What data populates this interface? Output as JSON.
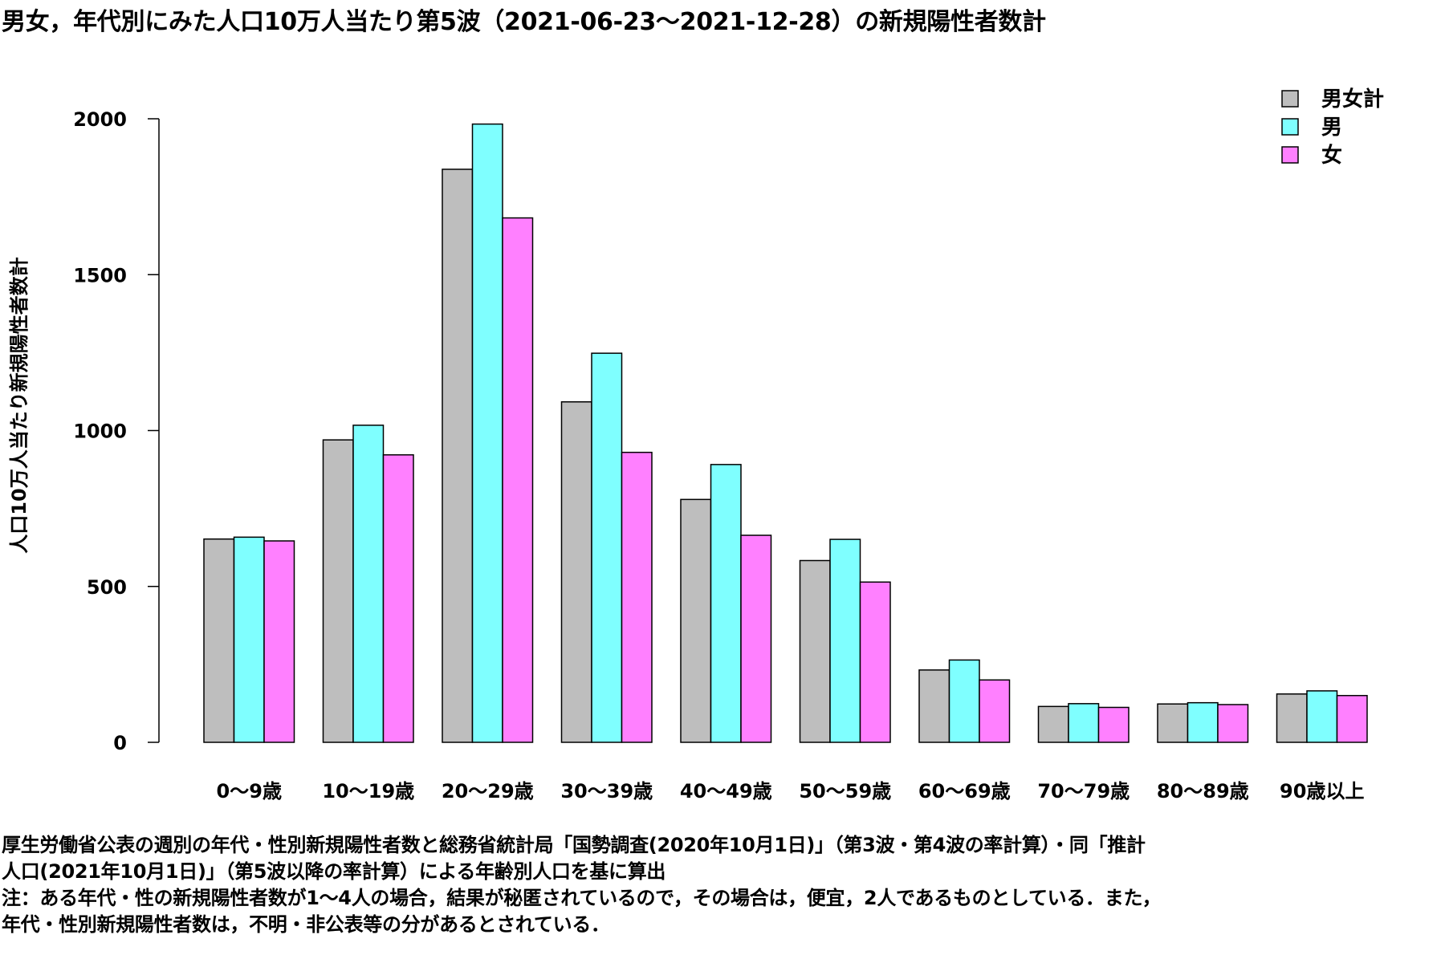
{
  "chart_data": {
    "type": "bar",
    "title": "男女，年代別にみた人口10万人当たり第5波（2021-06-23～2021-12-28）の新規陽性者数計",
    "xlabel": "",
    "ylabel": "人口10万人当たり新規陽性者数計",
    "ylim": [
      0,
      2000
    ],
    "yticks": [
      "0",
      "500",
      "1000",
      "1500",
      "2000"
    ],
    "grid": false,
    "legend_position": "top-right",
    "categories": [
      "0～9歳",
      "10～19歳",
      "20～29歳",
      "30～39歳",
      "40～49歳",
      "50～59歳",
      "60～69歳",
      "70～79歳",
      "80～89歳",
      "90歳以上"
    ],
    "series": [
      {
        "name": "男女計",
        "color": "#BEBEBE",
        "values": [
          652,
          970,
          1838,
          1092,
          779,
          583,
          232,
          115,
          123,
          155
        ]
      },
      {
        "name": "男",
        "color": "#7FFFFF",
        "values": [
          658,
          1017,
          1983,
          1248,
          891,
          651,
          264,
          124,
          127,
          165
        ]
      },
      {
        "name": "女",
        "color": "#FF80FF",
        "values": [
          646,
          922,
          1682,
          930,
          664,
          514,
          200,
          112,
          121,
          150
        ]
      }
    ]
  },
  "notes": {
    "line1": "厚生労働省公表の週別の年代・性別新規陽性者数と総務省統計局「国勢調査(2020年10月1日)」（第3波・第4波の率計算）・同「推計",
    "line2": "人口(2021年10月1日)」（第5波以降の率計算）による年齢別人口を基に算出",
    "line3": "注：ある年代・性の新規陽性者数が1～4人の場合，結果が秘匿されているので，その場合は，便宜，2人であるものとしている．また，",
    "line4": "年代・性別新規陽性者数は，不明・非公表等の分があるとされている．"
  }
}
